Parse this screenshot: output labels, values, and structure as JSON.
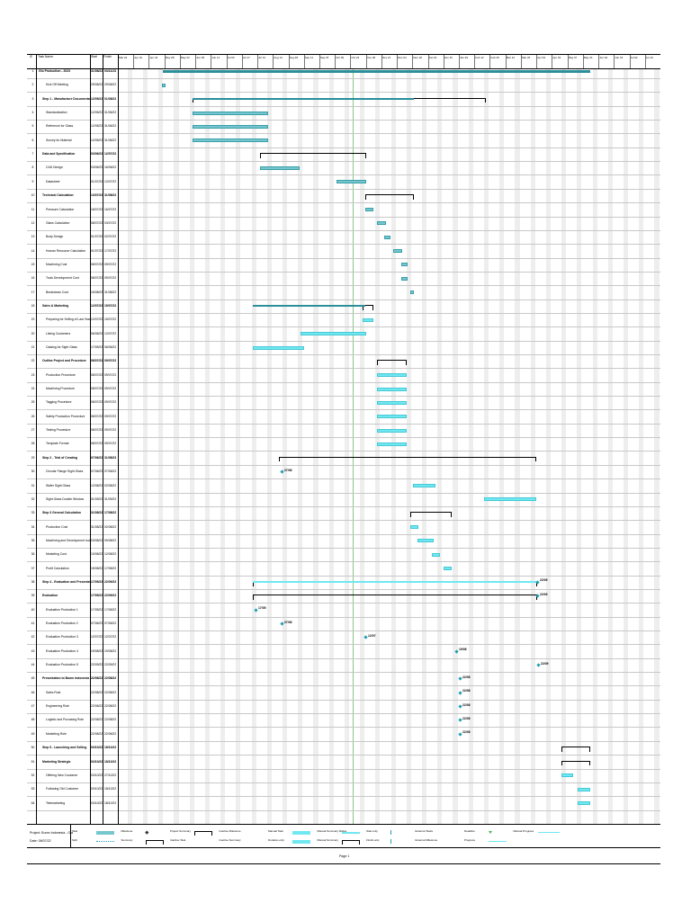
{
  "header": {
    "id_label": "ID",
    "name_label": "Task Name",
    "start_label": "Start",
    "finish_label": "Finish"
  },
  "tasks": [
    {
      "id": "1",
      "name": "Glo Production - 2023",
      "start": "31/08/22",
      "finish": "03/11/23",
      "summary": true
    },
    {
      "id": "2",
      "name": "Kick Off Meeting",
      "start": "29/08/22",
      "finish": "29/08/22",
      "summary": false
    },
    {
      "id": "3",
      "name": "Step 1 - Manufacture Documentation",
      "start": "12/05/22",
      "finish": "01/08/22",
      "summary": true
    },
    {
      "id": "4",
      "name": "Standardization",
      "start": "12/05/22",
      "finish": "31/06/22",
      "summary": false
    },
    {
      "id": "5",
      "name": "Reference for Glass",
      "start": "12/05/22",
      "finish": "31/06/22",
      "summary": false
    },
    {
      "id": "6",
      "name": "Survey for Material",
      "start": "12/05/22",
      "finish": "31/06/22",
      "summary": false
    },
    {
      "id": "7",
      "name": "Data and Specification",
      "start": "03/06/22",
      "finish": "12/07/22",
      "summary": true
    },
    {
      "id": "8",
      "name": "CAD Design",
      "start": "03/06/22",
      "finish": "16/06/22",
      "summary": false
    },
    {
      "id": "9",
      "name": "Datasheet",
      "start": "01/07/22",
      "finish": "12/07/22",
      "summary": false
    },
    {
      "id": "10",
      "name": "Technical Calculation",
      "start": "13/07/22",
      "finish": "31/08/22",
      "summary": true
    },
    {
      "id": "11",
      "name": "Pressure Calculation",
      "start": "18/07/22",
      "finish": "16/07/22",
      "summary": false
    },
    {
      "id": "12",
      "name": "Glass Calculation",
      "start": "08/07/22",
      "finish": "03/07/22",
      "summary": false
    },
    {
      "id": "13",
      "name": "Body Design",
      "start": "01/07/22",
      "finish": "02/07/22",
      "summary": false
    },
    {
      "id": "14",
      "name": "Human Resource Calculation",
      "start": "01/07/22",
      "finish": "17/07/22",
      "summary": false
    },
    {
      "id": "15",
      "name": "Machining Cost",
      "start": "08/07/22",
      "finish": "09/07/22",
      "summary": false
    },
    {
      "id": "16",
      "name": "Tools Development Cost",
      "start": "08/07/22",
      "finish": "09/07/22",
      "summary": false
    },
    {
      "id": "17",
      "name": "Breakdown Cost",
      "start": "15/08/22",
      "finish": "31/08/22",
      "summary": false
    },
    {
      "id": "18",
      "name": "Sales & Marketing",
      "start": "12/07/22",
      "finish": "15/07/22",
      "summary": true
    },
    {
      "id": "19",
      "name": "Preparing for Selling of Last Year",
      "start": "12/07/22",
      "finish": "15/07/22",
      "summary": false
    },
    {
      "id": "20",
      "name": "Listing Customers",
      "start": "06/06/22",
      "finish": "12/07/22",
      "summary": false
    },
    {
      "id": "21",
      "name": "Catalog for Sight Glass",
      "start": "17/05/22",
      "finish": "06/06/22",
      "summary": false
    },
    {
      "id": "22",
      "name": "Outline Project and Procedure",
      "start": "08/07/22",
      "finish": "09/07/22",
      "summary": true
    },
    {
      "id": "23",
      "name": "Production Procedure",
      "start": "08/07/22",
      "finish": "09/07/22",
      "summary": false
    },
    {
      "id": "24",
      "name": "Machining Procedure",
      "start": "08/07/22",
      "finish": "09/07/22",
      "summary": false
    },
    {
      "id": "25",
      "name": "Tagging Procedure",
      "start": "08/07/22",
      "finish": "09/07/22",
      "summary": false
    },
    {
      "id": "26",
      "name": "Safety Production Procedure",
      "start": "08/07/22",
      "finish": "09/07/22",
      "summary": false
    },
    {
      "id": "27",
      "name": "Testing Procedure",
      "start": "08/07/22",
      "finish": "09/07/22",
      "summary": false
    },
    {
      "id": "28",
      "name": "Template Format",
      "start": "08/07/22",
      "finish": "09/07/22",
      "summary": false
    },
    {
      "id": "29",
      "name": "Step 2 - Trial of Creating",
      "start": "07/06/22",
      "finish": "31/08/23",
      "summary": true
    },
    {
      "id": "30",
      "name": "Circular Flange Sight Glass",
      "start": "07/06/22",
      "finish": "07/06/22",
      "summary": false
    },
    {
      "id": "31",
      "name": "Wafer Sight Glass",
      "start": "12/08/22",
      "finish": "02/08/22",
      "summary": false
    },
    {
      "id": "32",
      "name": "Sight Glass Double Window",
      "start": "31/09/22",
      "finish": "31/09/22",
      "summary": false
    },
    {
      "id": "33",
      "name": "Step 3 General Calculation",
      "start": "31/08/22",
      "finish": "17/08/22",
      "summary": true
    },
    {
      "id": "34",
      "name": "Production Cost",
      "start": "31/08/22",
      "finish": "02/08/22",
      "summary": false
    },
    {
      "id": "35",
      "name": "Machining and Development tool cost",
      "start": "03/08/22",
      "finish": "09/08/22",
      "summary": false
    },
    {
      "id": "36",
      "name": "Marketing Cost",
      "start": "10/08/22",
      "finish": "12/08/22",
      "summary": false
    },
    {
      "id": "37",
      "name": "Profit Calculation",
      "start": "15/08/22",
      "finish": "17/08/22",
      "summary": false
    },
    {
      "id": "38",
      "name": "Step 4 - Evaluation and Presentation",
      "start": "17/05/22",
      "finish": "22/09/22",
      "summary": true
    },
    {
      "id": "39",
      "name": "Evaluation",
      "start": "17/05/22",
      "finish": "22/09/22",
      "summary": true
    },
    {
      "id": "40",
      "name": "Evaluation Production 1",
      "start": "17/05/22",
      "finish": "17/05/22",
      "summary": false
    },
    {
      "id": "41",
      "name": "Evaluation Production 2",
      "start": "07/06/22",
      "finish": "07/06/22",
      "summary": false
    },
    {
      "id": "42",
      "name": "Evaluation Production 3",
      "start": "12/07/22",
      "finish": "12/07/22",
      "summary": false
    },
    {
      "id": "43",
      "name": "Evaluation Production 4",
      "start": "19/08/22",
      "finish": "19/08/22",
      "summary": false
    },
    {
      "id": "44",
      "name": "Evaluation Production 5",
      "start": "22/09/22",
      "finish": "22/09/22",
      "summary": false
    },
    {
      "id": "45",
      "name": "Presentation to Bumn Indonesia",
      "start": "22/08/22",
      "finish": "22/08/22",
      "summary": true
    },
    {
      "id": "46",
      "name": "Sales Role",
      "start": "22/08/22",
      "finish": "22/08/22",
      "summary": false
    },
    {
      "id": "47",
      "name": "Engineering Role",
      "start": "22/08/22",
      "finish": "22/08/22",
      "summary": false
    },
    {
      "id": "48",
      "name": "Logistic and Purcasing Role",
      "start": "22/08/22",
      "finish": "22/08/22",
      "summary": false
    },
    {
      "id": "49",
      "name": "Marketing Role",
      "start": "22/08/22",
      "finish": "22/08/22",
      "summary": false
    },
    {
      "id": "50",
      "name": "Step 5 - Launching and Selling",
      "start": "03/10/22",
      "finish": "18/10/22",
      "summary": true
    },
    {
      "id": "51",
      "name": "Marketing Strategic",
      "start": "03/10/22",
      "finish": "18/10/22",
      "summary": true
    },
    {
      "id": "52",
      "name": "Offering New Customer",
      "start": "03/10/22",
      "finish": "27/10/22",
      "summary": false
    },
    {
      "id": "53",
      "name": "Following Old Customer",
      "start": "03/10/22",
      "finish": "18/10/22",
      "summary": false
    },
    {
      "id": "54",
      "name": "Telemarketing",
      "start": "03/10/22",
      "finish": "18/10/22",
      "summary": false
    }
  ],
  "bars": [
    {
      "row": 0,
      "kind": "project",
      "from": 181,
      "to": 656
    },
    {
      "row": 1,
      "kind": "task",
      "from": 180,
      "to": 184
    },
    {
      "row": 2,
      "kind": "summary",
      "from": 214,
      "to": 540
    },
    {
      "row": 3,
      "kind": "task",
      "from": 214,
      "to": 298
    },
    {
      "row": 4,
      "kind": "task",
      "from": 214,
      "to": 298
    },
    {
      "row": 5,
      "kind": "task",
      "from": 214,
      "to": 298
    },
    {
      "row": 6,
      "kind": "summary",
      "from": 289,
      "to": 407
    },
    {
      "row": 7,
      "kind": "task",
      "from": 289,
      "to": 333
    },
    {
      "row": 8,
      "kind": "task",
      "from": 374,
      "to": 407
    },
    {
      "row": 9,
      "kind": "summary",
      "from": 406,
      "to": 460
    },
    {
      "row": 10,
      "kind": "task",
      "from": 406,
      "to": 415
    },
    {
      "row": 11,
      "kind": "task",
      "from": 419,
      "to": 429
    },
    {
      "row": 12,
      "kind": "task",
      "from": 427,
      "to": 434
    },
    {
      "row": 13,
      "kind": "task",
      "from": 437,
      "to": 447
    },
    {
      "row": 14,
      "kind": "task",
      "from": 446,
      "to": 453
    },
    {
      "row": 15,
      "kind": "task",
      "from": 446,
      "to": 453
    },
    {
      "row": 16,
      "kind": "task",
      "from": 456,
      "to": 460
    },
    {
      "row": 17,
      "kind": "summary",
      "from": 403,
      "to": 415
    },
    {
      "row": 18,
      "kind": "manual",
      "from": 403,
      "to": 415
    },
    {
      "row": 19,
      "kind": "manual",
      "from": 334,
      "to": 407
    },
    {
      "row": 20,
      "kind": "manual",
      "from": 281,
      "to": 338
    },
    {
      "row": 21,
      "kind": "summary",
      "from": 419,
      "to": 452
    },
    {
      "row": 22,
      "kind": "manual",
      "from": 419,
      "to": 452
    },
    {
      "row": 23,
      "kind": "manual",
      "from": 419,
      "to": 452
    },
    {
      "row": 24,
      "kind": "manual",
      "from": 419,
      "to": 452
    },
    {
      "row": 25,
      "kind": "manual",
      "from": 419,
      "to": 452
    },
    {
      "row": 26,
      "kind": "manual",
      "from": 419,
      "to": 452
    },
    {
      "row": 27,
      "kind": "manual",
      "from": 419,
      "to": 452
    },
    {
      "row": 28,
      "kind": "summary",
      "from": 310,
      "to": 596
    },
    {
      "row": 30,
      "kind": "manual",
      "from": 459,
      "to": 484
    },
    {
      "row": 31,
      "kind": "manual",
      "from": 538,
      "to": 596
    },
    {
      "row": 32,
      "kind": "summary",
      "from": 456,
      "to": 502
    },
    {
      "row": 33,
      "kind": "manual",
      "from": 456,
      "to": 465
    },
    {
      "row": 34,
      "kind": "manual",
      "from": 464,
      "to": 482
    },
    {
      "row": 35,
      "kind": "manual",
      "from": 480,
      "to": 489
    },
    {
      "row": 36,
      "kind": "manual",
      "from": 493,
      "to": 502
    },
    {
      "row": 37,
      "kind": "summary",
      "from": 281,
      "to": 597
    },
    {
      "row": 38,
      "kind": "summary",
      "from": 281,
      "to": 597
    },
    {
      "row": 49,
      "kind": "summary",
      "from": 624,
      "to": 656
    },
    {
      "row": 50,
      "kind": "summary",
      "from": 624,
      "to": 656
    },
    {
      "row": 51,
      "kind": "manual",
      "from": 624,
      "to": 637
    },
    {
      "row": 52,
      "kind": "manual",
      "from": 642,
      "to": 656
    },
    {
      "row": 53,
      "kind": "manual",
      "from": 642,
      "to": 656
    }
  ],
  "milestones": [
    {
      "row": 29,
      "at": 313,
      "label": "07/06"
    },
    {
      "row": 37,
      "at": 597,
      "label": "22/09"
    },
    {
      "row": 38,
      "at": 597,
      "label": "22/09"
    },
    {
      "row": 39,
      "at": 284,
      "label": "17/05"
    },
    {
      "row": 40,
      "at": 313,
      "label": "07/06"
    },
    {
      "row": 41,
      "at": 406,
      "label": "12/07"
    },
    {
      "row": 42,
      "at": 507,
      "label": "19/08"
    },
    {
      "row": 43,
      "at": 598,
      "label": "22/09"
    },
    {
      "row": 44,
      "at": 511,
      "label": "22/08"
    },
    {
      "row": 45,
      "at": 511,
      "label": "22/08"
    },
    {
      "row": 46,
      "at": 511,
      "label": "22/08"
    },
    {
      "row": 47,
      "at": 511,
      "label": "22/08"
    },
    {
      "row": 48,
      "at": 511,
      "label": "22/08"
    }
  ],
  "timescale": [
    "Mar 22",
    "Apr 10",
    "Apr 24",
    "May 08",
    "May 22",
    "Jun 05",
    "Jun 19",
    "Jul 03",
    "Jul 17",
    "Jul 31",
    "Aug 14",
    "Aug 28",
    "Sep 11",
    "Sep 25",
    "Oct 09",
    "Oct 23",
    "Nov 06",
    "Nov 20",
    "Dec 04",
    "Dec 18",
    "Jan 01",
    "Jan 15",
    "Jan 29",
    "Feb 12",
    "Feb 26",
    "Mar 12",
    "Mar 26",
    "Apr 09",
    "Apr 23",
    "May 07",
    "May 21",
    "Jun 04",
    "Jun 18",
    "Jul 02",
    "Jul 16"
  ],
  "footer": {
    "project": "Project: Bumn Indonesia - Gla",
    "date": "Date: 08/07/22",
    "page": "Page 1"
  },
  "legend": [
    {
      "label": "Task",
      "kind": "task"
    },
    {
      "label": "Milestone",
      "kind": "milestone"
    },
    {
      "label": "Project Summary",
      "kind": "bracket"
    },
    {
      "label": "Inactive Milestone",
      "kind": "text"
    },
    {
      "label": "Manual Task",
      "kind": "manual"
    },
    {
      "label": "Manual Summary Rollup",
      "kind": "rollup"
    },
    {
      "label": "Start-only",
      "kind": "startonly"
    },
    {
      "label": "External Tasks",
      "kind": "text"
    },
    {
      "label": "Deadline",
      "kind": "deadline"
    },
    {
      "label": "Manual Progress",
      "kind": "progressline"
    },
    {
      "label": "Split",
      "kind": "split"
    },
    {
      "label": "Summary",
      "kind": "summary"
    },
    {
      "label": "Inactive Task",
      "kind": "text"
    },
    {
      "label": "Inactive Summary",
      "kind": "text"
    },
    {
      "label": "Duration-only",
      "kind": "durationonly"
    },
    {
      "label": "Manual Summary",
      "kind": "summary"
    },
    {
      "label": "Finish-only",
      "kind": "finishonly"
    },
    {
      "label": "External Milestone",
      "kind": "text"
    },
    {
      "label": "Progress",
      "kind": "progress"
    }
  ],
  "colors": {
    "task": "#76c6cf",
    "project": "#2a8e9b",
    "manual": "#6fe8f2",
    "milestone": "#1ea0b4",
    "today": "#8bc48b"
  }
}
